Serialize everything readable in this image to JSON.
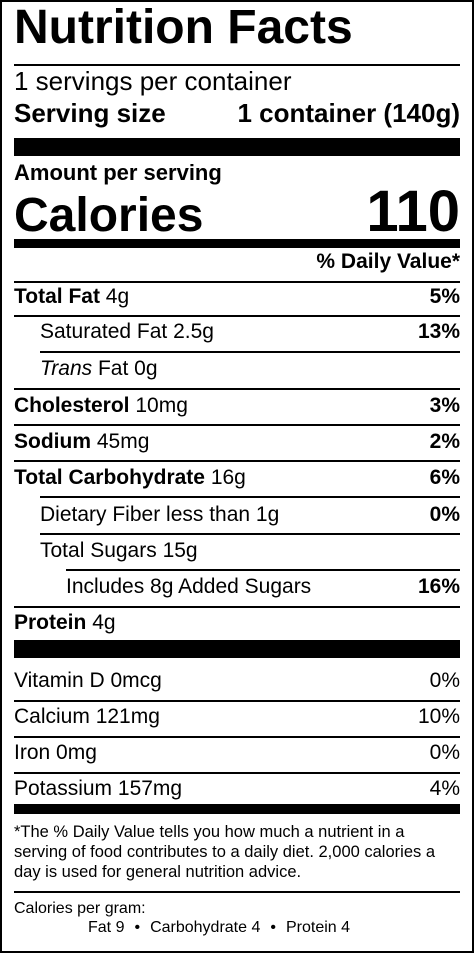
{
  "title": "Nutrition Facts",
  "servings_per_container": "1 servings per container",
  "serving_size": {
    "label": "Serving size",
    "value": "1 container (140g)"
  },
  "amount_per_serving": "Amount per serving",
  "calories": {
    "label": "Calories",
    "value": "110"
  },
  "daily_value_header": "% Daily Value*",
  "nutrients": [
    {
      "name": "Total Fat",
      "amount": "4g",
      "dv": "5%"
    },
    {
      "name": "Saturated Fat",
      "amount": "2.5g",
      "dv": "13%"
    },
    {
      "name_italic": "Trans",
      "name": "Fat",
      "amount": "0g",
      "dv": ""
    },
    {
      "name": "Cholesterol",
      "amount": "10mg",
      "dv": "3%"
    },
    {
      "name": "Sodium",
      "amount": "45mg",
      "dv": "2%"
    },
    {
      "name": "Total Carbohydrate",
      "amount": "16g",
      "dv": "6%"
    },
    {
      "name": "Dietary Fiber",
      "amount": "less than 1g",
      "dv": "0%"
    },
    {
      "name": "Total Sugars",
      "amount": "15g",
      "dv": ""
    },
    {
      "name": "Includes 8g Added Sugars",
      "amount": "",
      "dv": "16%"
    },
    {
      "name": "Protein",
      "amount": "4g",
      "dv": ""
    }
  ],
  "vitamins": [
    {
      "name": "Vitamin D",
      "amount": "0mcg",
      "dv": "0%"
    },
    {
      "name": "Calcium",
      "amount": "121mg",
      "dv": "10%"
    },
    {
      "name": "Iron",
      "amount": "0mg",
      "dv": "0%"
    },
    {
      "name": "Potassium",
      "amount": "157mg",
      "dv": "4%"
    }
  ],
  "footnote": "*The % Daily Value tells you how much a nutrient in a serving of food contributes to a daily diet. 2,000 calories a day is used for general nutrition advice.",
  "calories_per_gram": {
    "label": "Calories per gram:",
    "fat": "Fat 9",
    "carbohydrate": "Carbohydrate 4",
    "protein": "Protein 4",
    "separator": "•"
  }
}
